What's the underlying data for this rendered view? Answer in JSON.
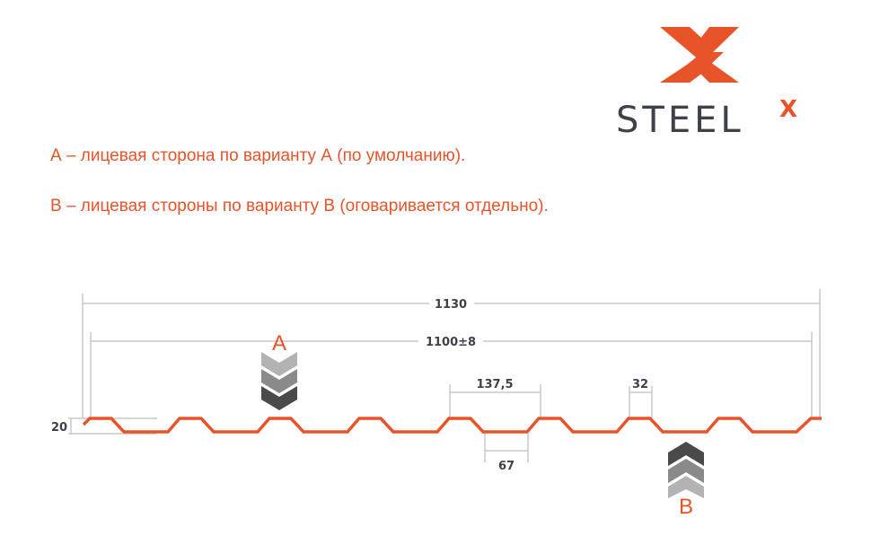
{
  "logo": {
    "text": "STEEL",
    "superscript": "X",
    "brand_color": "#e8542a",
    "text_color": "#3d4148"
  },
  "notes": [
    "А – лицевая сторона по варианту А (по умолчанию).",
    "В – лицевая стороны по варианту В (оговаривается отдельно)."
  ],
  "diagram": {
    "profile_color": "#e8542a",
    "dimensions": {
      "overall_width": "1130",
      "working_width": "1100±8",
      "pitch": "137,5",
      "top_width": "32",
      "bottom_width": "67",
      "height": "20"
    },
    "face_labels": {
      "a": "А",
      "b": "В"
    }
  }
}
